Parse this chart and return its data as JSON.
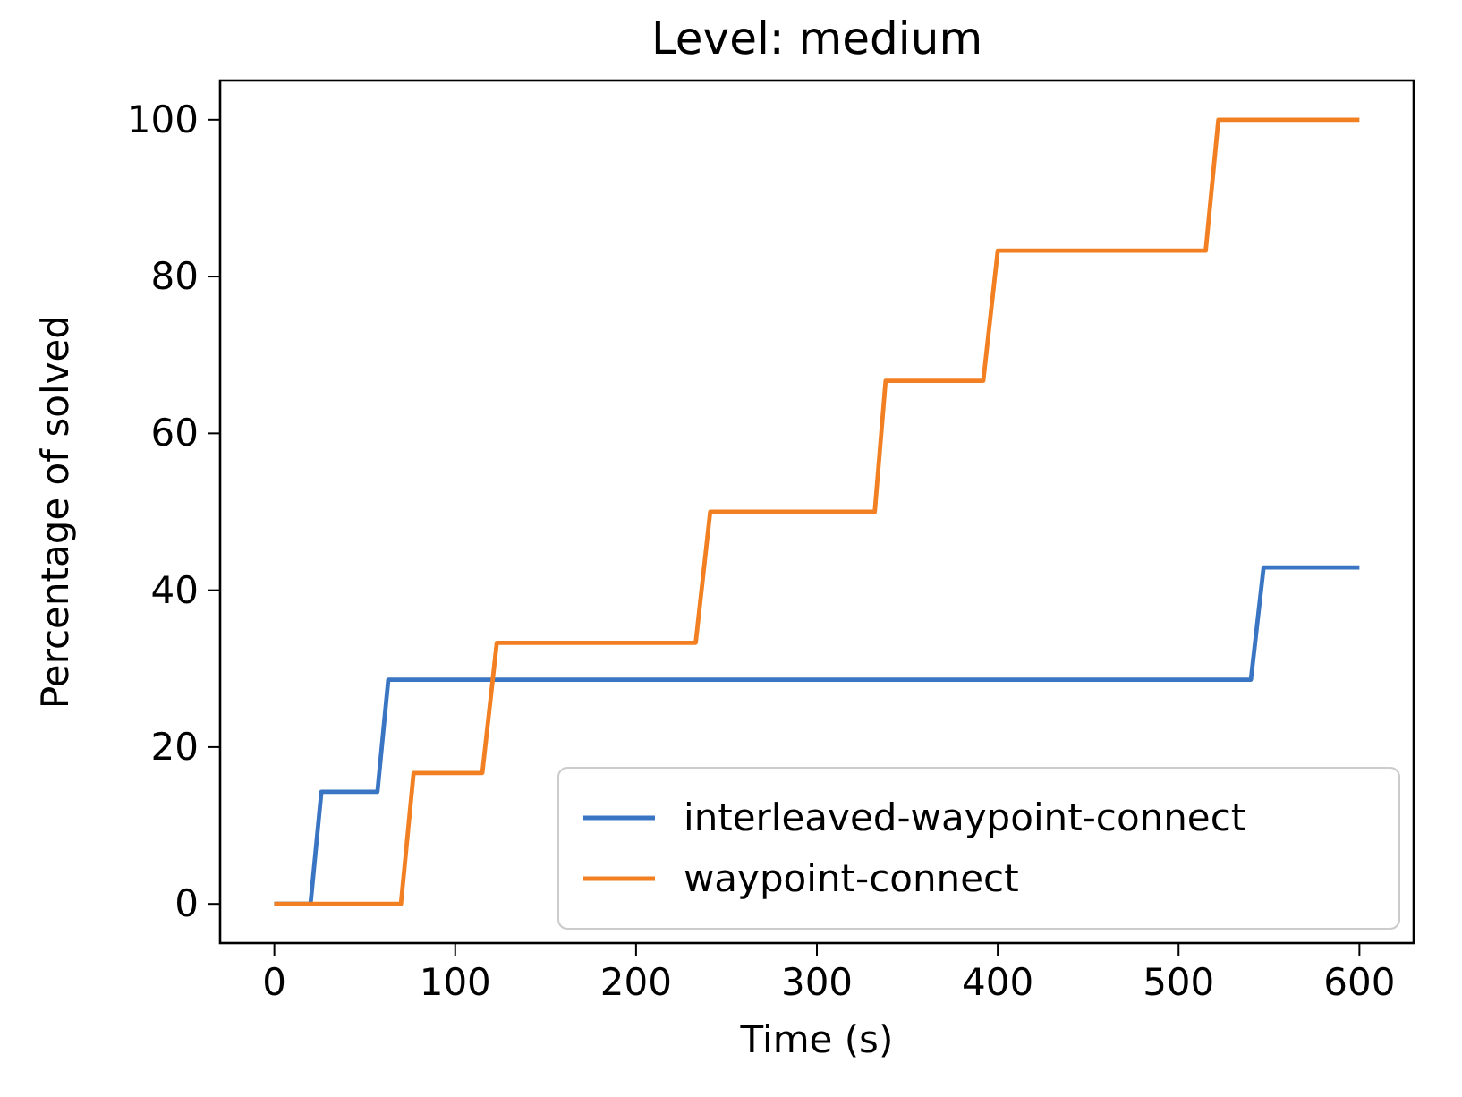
{
  "chart_data": {
    "type": "line",
    "title": "Level: medium",
    "xlabel": "Time (s)",
    "ylabel": "Percentage of solved",
    "xlim": [
      -30,
      630
    ],
    "xticks": [
      0,
      100,
      200,
      300,
      400,
      500,
      600
    ],
    "ylim": [
      -5,
      105
    ],
    "yticks": [
      0,
      20,
      40,
      60,
      80,
      100
    ],
    "grid": false,
    "legend": "bottom right",
    "marker": "none",
    "line_style": "solid",
    "series": [
      {
        "name": "interleaved-waypoint-connect",
        "color": "#3a75c4",
        "x": [
          0,
          20,
          26,
          57,
          63,
          540,
          547,
          600
        ],
        "values": [
          0,
          0,
          14.3,
          14.3,
          28.6,
          28.6,
          42.9,
          42.9
        ]
      },
      {
        "name": "waypoint-connect",
        "color": "#f28022",
        "x": [
          0,
          70,
          77,
          115,
          123,
          233,
          241,
          332,
          338,
          392,
          400,
          515,
          522,
          600
        ],
        "values": [
          0,
          0,
          16.7,
          16.7,
          33.3,
          33.3,
          50,
          50,
          66.7,
          66.7,
          83.3,
          83.3,
          100,
          100
        ]
      }
    ]
  }
}
